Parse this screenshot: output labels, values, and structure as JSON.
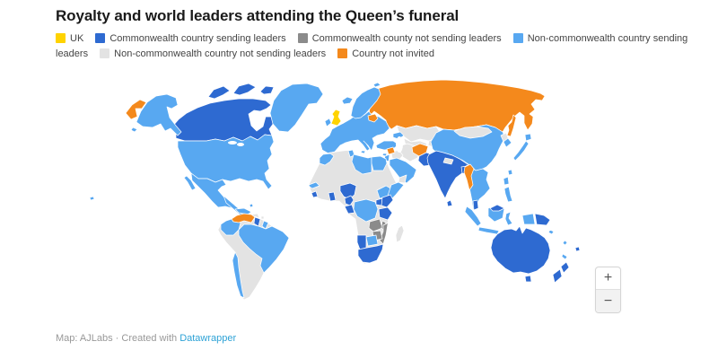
{
  "title": "Royalty and world leaders attending the Queen’s funeral",
  "legend": {
    "items": [
      {
        "id": "uk",
        "label": "UK"
      },
      {
        "id": "cw_sending",
        "label": "Commonwealth country sending leaders"
      },
      {
        "id": "cw_not_sending",
        "label": "Commonwealth county not sending leaders"
      },
      {
        "id": "noncw_sending",
        "label": "Non-commonwealth country sending leaders"
      },
      {
        "id": "noncw_not_sending",
        "label": "Non-commonwealth country not sending leaders"
      },
      {
        "id": "not_invited",
        "label": "Country not invited"
      }
    ]
  },
  "map": {
    "category_colors": {
      "uk": "#ffd300",
      "cw_sending": "#2e6ad1",
      "cw_not_sending": "#8b8b8b",
      "noncw_sending": "#58a8f1",
      "noncw_not_sending": "#e3e3e3",
      "not_invited": "#f4891c"
    },
    "countries": {
      "russia": "not_invited",
      "chukotka_west": "not_invited",
      "sakhalin": "not_invited",
      "belarus": "not_invited",
      "syria": "not_invited",
      "afghanistan": "not_invited",
      "myanmar": "not_invited",
      "venezuela": "not_invited",
      "uk": "uk",
      "canada": "cw_sending",
      "arctic1": "cw_sending",
      "arctic2": "cw_sending",
      "arctic3": "cw_sending",
      "australia": "cw_sending",
      "tasmania": "cw_sending",
      "nz_north": "cw_sending",
      "nz_south": "cw_sending",
      "png": "cw_sending",
      "fiji": "cw_sending",
      "india": "cw_sending",
      "pakistan": "cw_sending",
      "bangladesh": "cw_sending",
      "sri_lanka": "cw_sending",
      "malaysia_pen": "cw_sending",
      "malaysia_borneo": "cw_sending",
      "nigeria": "cw_sending",
      "ghana": "cw_sending",
      "sierra_leone": "cw_sending",
      "cameroon": "cw_sending",
      "gabon": "cw_sending",
      "kenya": "cw_sending",
      "uganda": "cw_sending",
      "tanzania": "cw_sending",
      "namibia": "cw_sending",
      "south_africa": "cw_sending",
      "guyana": "cw_sending",
      "jamaica": "cw_sending",
      "zambia": "cw_not_sending",
      "zimbabwe": "cw_not_sending",
      "malawi": "cw_not_sending",
      "mozambique": "cw_not_sending",
      "usa": "noncw_sending",
      "alaska": "noncw_sending",
      "aleutians": "noncw_sending",
      "hawaii": "noncw_sending",
      "greenland": "noncw_sending",
      "mexico": "noncw_sending",
      "baja": "noncw_sending",
      "central_america": "noncw_sending",
      "cuba": "noncw_sending",
      "bahamas": "noncw_sending",
      "colombia": "noncw_sending",
      "french_guiana": "noncw_sending",
      "brazil": "noncw_sending",
      "chile": "noncw_sending",
      "europe_mainland": "noncw_sending",
      "scandinavia": "noncw_sending",
      "iceland": "noncw_sending",
      "ireland": "noncw_sending",
      "svalbard": "noncw_sending",
      "sicily": "noncw_sending",
      "turkey": "noncw_sending",
      "cyprus": "noncw_sending",
      "israel_jordan": "noncw_sending",
      "arabia": "noncw_sending",
      "caucasus": "noncw_sending",
      "morocco": "noncw_sending",
      "tunisia": "noncw_sending",
      "libya": "noncw_sending",
      "egypt": "noncw_sending",
      "senegal": "noncw_sending",
      "ethiopia": "noncw_sending",
      "somalia": "noncw_sending",
      "drc": "noncw_sending",
      "botswana": "noncw_sending",
      "china": "noncw_sending",
      "south_korea": "noncw_sending",
      "japan_hokkaido": "noncw_sending",
      "japan_main": "noncw_sending",
      "taiwan": "noncw_sending",
      "indochina": "noncw_sending",
      "philippines1": "noncw_sending",
      "philippines2": "noncw_sending",
      "sumatra": "noncw_sending",
      "java": "noncw_sending",
      "borneo": "noncw_sending",
      "sulawesi": "noncw_sending",
      "indo_papua": "noncw_sending",
      "new_caledonia": "noncw_sending",
      "solomon": "noncw_sending",
      "vanuatu": "noncw_sending",
      "kazakhstan": "noncw_not_sending",
      "uzbek_turkmen": "noncw_not_sending",
      "kyrgyz_tajik": "noncw_not_sending",
      "mongolia": "noncw_not_sending",
      "north_korea": "noncw_not_sending",
      "iraq": "noncw_not_sending",
      "iran": "noncw_not_sending",
      "yemen": "noncw_not_sending",
      "africa": "noncw_not_sending",
      "madagascar": "noncw_not_sending",
      "nepal": "noncw_not_sending",
      "hispaniola": "noncw_not_sending",
      "puerto_rico": "noncw_not_sending",
      "south_america": "noncw_not_sending"
    }
  },
  "zoom_controls": {
    "zoom_in": "+",
    "zoom_out": "−"
  },
  "footer": {
    "text": "Map: AJLabs · Created with ",
    "link": "Datawrapper"
  }
}
